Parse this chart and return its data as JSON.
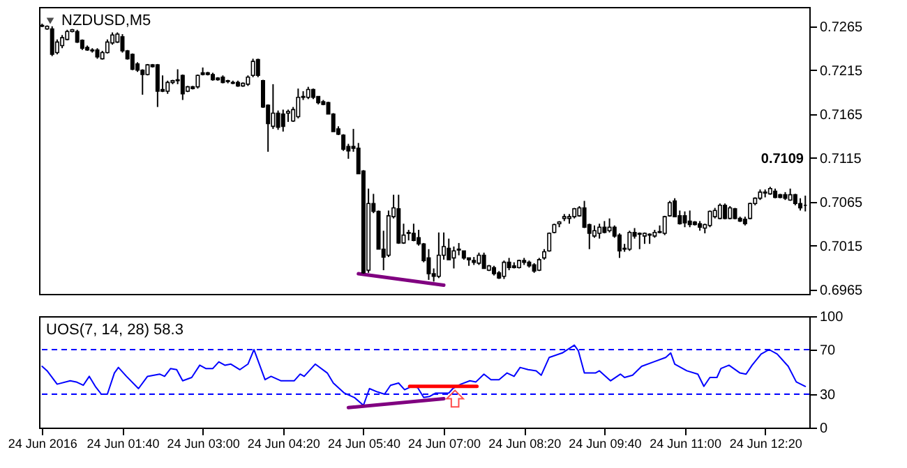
{
  "chart_data": [
    {
      "type": "candlestick",
      "title": "NZDUSD,M5",
      "color": "#000000",
      "x": [
        "2016-06-24T00:20",
        "2016-06-24T00:25",
        "2016-06-24T00:30",
        "2016-06-24T00:35",
        "2016-06-24T00:40",
        "2016-06-24T00:45",
        "2016-06-24T00:50",
        "2016-06-24T00:55",
        "2016-06-24T01:00",
        "2016-06-24T01:05",
        "2016-06-24T01:10",
        "2016-06-24T01:15",
        "2016-06-24T01:20",
        "2016-06-24T01:25",
        "2016-06-24T01:30",
        "2016-06-24T01:35",
        "2016-06-24T01:40",
        "2016-06-24T01:45",
        "2016-06-24T01:50",
        "2016-06-24T01:55",
        "2016-06-24T02:00",
        "2016-06-24T02:05",
        "2016-06-24T02:10",
        "2016-06-24T02:15",
        "2016-06-24T02:20",
        "2016-06-24T02:25",
        "2016-06-24T02:30",
        "2016-06-24T02:35",
        "2016-06-24T02:40",
        "2016-06-24T02:45",
        "2016-06-24T02:50",
        "2016-06-24T02:55",
        "2016-06-24T03:00",
        "2016-06-24T03:05",
        "2016-06-24T03:10",
        "2016-06-24T03:15",
        "2016-06-24T03:20",
        "2016-06-24T03:25",
        "2016-06-24T03:30",
        "2016-06-24T03:35",
        "2016-06-24T03:40",
        "2016-06-24T03:45",
        "2016-06-24T03:50",
        "2016-06-24T03:55",
        "2016-06-24T04:00",
        "2016-06-24T04:05",
        "2016-06-24T04:10",
        "2016-06-24T04:15",
        "2016-06-24T04:20",
        "2016-06-24T04:25",
        "2016-06-24T04:30",
        "2016-06-24T04:35",
        "2016-06-24T04:40",
        "2016-06-24T04:45",
        "2016-06-24T04:50",
        "2016-06-24T04:55",
        "2016-06-24T05:00",
        "2016-06-24T05:05",
        "2016-06-24T05:10",
        "2016-06-24T05:15",
        "2016-06-24T05:20",
        "2016-06-24T05:25",
        "2016-06-24T05:30",
        "2016-06-24T05:35",
        "2016-06-24T05:40",
        "2016-06-24T05:45",
        "2016-06-24T05:50",
        "2016-06-24T05:55",
        "2016-06-24T06:00",
        "2016-06-24T06:05",
        "2016-06-24T06:10",
        "2016-06-24T06:15",
        "2016-06-24T06:20",
        "2016-06-24T06:25",
        "2016-06-24T06:30",
        "2016-06-24T06:35",
        "2016-06-24T06:40",
        "2016-06-24T06:45",
        "2016-06-24T06:50",
        "2016-06-24T06:55",
        "2016-06-24T07:00",
        "2016-06-24T07:05",
        "2016-06-24T07:10",
        "2016-06-24T07:15",
        "2016-06-24T07:20",
        "2016-06-24T07:25",
        "2016-06-24T07:30",
        "2016-06-24T07:35",
        "2016-06-24T07:40",
        "2016-06-24T07:45",
        "2016-06-24T07:50",
        "2016-06-24T07:55",
        "2016-06-24T08:00",
        "2016-06-24T08:05",
        "2016-06-24T08:10",
        "2016-06-24T08:15",
        "2016-06-24T08:20",
        "2016-06-24T08:25",
        "2016-06-24T08:30",
        "2016-06-24T08:35",
        "2016-06-24T08:40",
        "2016-06-24T08:45",
        "2016-06-24T08:50",
        "2016-06-24T08:55",
        "2016-06-24T09:00",
        "2016-06-24T09:05",
        "2016-06-24T09:10",
        "2016-06-24T09:15",
        "2016-06-24T09:20",
        "2016-06-24T09:25",
        "2016-06-24T09:30",
        "2016-06-24T09:35",
        "2016-06-24T09:40",
        "2016-06-24T09:45",
        "2016-06-24T09:50",
        "2016-06-24T09:55",
        "2016-06-24T10:00",
        "2016-06-24T10:05",
        "2016-06-24T10:10",
        "2016-06-24T10:15",
        "2016-06-24T10:20",
        "2016-06-24T10:25",
        "2016-06-24T10:30",
        "2016-06-24T10:35",
        "2016-06-24T10:40",
        "2016-06-24T10:45",
        "2016-06-24T10:50",
        "2016-06-24T10:55",
        "2016-06-24T11:00",
        "2016-06-24T11:05",
        "2016-06-24T11:10",
        "2016-06-24T11:15",
        "2016-06-24T11:20",
        "2016-06-24T11:25",
        "2016-06-24T11:30",
        "2016-06-24T11:35",
        "2016-06-24T11:40",
        "2016-06-24T11:45",
        "2016-06-24T11:50",
        "2016-06-24T11:55",
        "2016-06-24T12:00",
        "2016-06-24T12:05",
        "2016-06-24T12:10",
        "2016-06-24T12:15",
        "2016-06-24T12:20",
        "2016-06-24T12:25",
        "2016-06-24T12:30",
        "2016-06-24T12:35",
        "2016-06-24T12:40",
        "2016-06-24T12:45",
        "2016-06-24T12:50",
        "2016-06-24T12:55",
        "2016-06-24T13:00"
      ],
      "ohlc": [
        [
          0.7266,
          0.7268,
          0.7264,
          0.7265
        ],
        [
          0.7262,
          0.7266,
          0.7261,
          0.7265
        ],
        [
          0.7262,
          0.7265,
          0.7231,
          0.7233
        ],
        [
          0.7235,
          0.725,
          0.7233,
          0.7247
        ],
        [
          0.7243,
          0.7255,
          0.724,
          0.7252
        ],
        [
          0.725,
          0.7261,
          0.7249,
          0.7259
        ],
        [
          0.7259,
          0.7262,
          0.7258,
          0.7261
        ],
        [
          0.7259,
          0.7261,
          0.7246,
          0.7247
        ],
        [
          0.7249,
          0.725,
          0.7238,
          0.724
        ],
        [
          0.7241,
          0.7243,
          0.7237,
          0.7238
        ],
        [
          0.7238,
          0.724,
          0.7235,
          0.7237
        ],
        [
          0.7238,
          0.724,
          0.7228,
          0.723
        ],
        [
          0.7228,
          0.7237,
          0.7227,
          0.7235
        ],
        [
          0.7235,
          0.725,
          0.7234,
          0.7247
        ],
        [
          0.7246,
          0.7258,
          0.7244,
          0.7255
        ],
        [
          0.7247,
          0.7258,
          0.7246,
          0.7256
        ],
        [
          0.7253,
          0.7256,
          0.7235,
          0.7237
        ],
        [
          0.7237,
          0.7238,
          0.7227,
          0.7228
        ],
        [
          0.7233,
          0.7234,
          0.7215,
          0.7216
        ],
        [
          0.7222,
          0.7224,
          0.7213,
          0.7215
        ],
        [
          0.7215,
          0.7216,
          0.7187,
          0.721
        ],
        [
          0.721,
          0.7222,
          0.7209,
          0.7221
        ],
        [
          0.7221,
          0.7222,
          0.7218,
          0.7219
        ],
        [
          0.7221,
          0.7222,
          0.7173,
          0.7191
        ],
        [
          0.7193,
          0.7209,
          0.719,
          0.7191
        ],
        [
          0.7191,
          0.7203,
          0.7188,
          0.7201
        ],
        [
          0.7201,
          0.7204,
          0.7199,
          0.7203
        ],
        [
          0.7203,
          0.7216,
          0.7199,
          0.7204
        ],
        [
          0.7209,
          0.721,
          0.7181,
          0.7188
        ],
        [
          0.7191,
          0.7197,
          0.719,
          0.7196
        ],
        [
          0.7196,
          0.7197,
          0.7193,
          0.7194
        ],
        [
          0.7196,
          0.721,
          0.7194,
          0.7209
        ],
        [
          0.7212,
          0.7218,
          0.7209,
          0.721
        ],
        [
          0.7212,
          0.7213,
          0.7209,
          0.721
        ],
        [
          0.721,
          0.7212,
          0.7203,
          0.7204
        ],
        [
          0.7206,
          0.7207,
          0.7203,
          0.7204
        ],
        [
          0.7207,
          0.7209,
          0.72,
          0.7201
        ],
        [
          0.7203,
          0.7204,
          0.72,
          0.7202
        ],
        [
          0.7201,
          0.7203,
          0.7199,
          0.72
        ],
        [
          0.7201,
          0.7203,
          0.7196,
          0.7197
        ],
        [
          0.7197,
          0.7201,
          0.7196,
          0.72
        ],
        [
          0.7199,
          0.7209,
          0.7197,
          0.7207
        ],
        [
          0.7209,
          0.7228,
          0.7207,
          0.7225
        ],
        [
          0.7227,
          0.7228,
          0.7207,
          0.7209
        ],
        [
          0.7203,
          0.7204,
          0.7172,
          0.7173
        ],
        [
          0.7175,
          0.7176,
          0.7122,
          0.7154
        ],
        [
          0.7151,
          0.7199,
          0.7148,
          0.7166
        ],
        [
          0.7166,
          0.7169,
          0.7147,
          0.715
        ],
        [
          0.7165,
          0.717,
          0.7145,
          0.7151
        ],
        [
          0.7166,
          0.717,
          0.7156,
          0.7168
        ],
        [
          0.7157,
          0.7173,
          0.7156,
          0.717
        ],
        [
          0.7162,
          0.7194,
          0.716,
          0.7184
        ],
        [
          0.7184,
          0.7191,
          0.7181,
          0.7185
        ],
        [
          0.7184,
          0.7196,
          0.7182,
          0.7193
        ],
        [
          0.7193,
          0.7194,
          0.7182,
          0.7184
        ],
        [
          0.7185,
          0.7185,
          0.7176,
          0.7178
        ],
        [
          0.7179,
          0.7181,
          0.7175,
          0.7176
        ],
        [
          0.7178,
          0.7179,
          0.7165,
          0.7165
        ],
        [
          0.7165,
          0.7166,
          0.7145,
          0.7145
        ],
        [
          0.7148,
          0.7151,
          0.7141,
          0.7142
        ],
        [
          0.7141,
          0.7142,
          0.7123,
          0.7125
        ],
        [
          0.7128,
          0.7131,
          0.7114,
          0.7123
        ],
        [
          0.7128,
          0.7148,
          0.7122,
          0.7126
        ],
        [
          0.7126,
          0.7132,
          0.7097,
          0.7097
        ],
        [
          0.71,
          0.7101,
          0.6983,
          0.6984
        ],
        [
          0.6987,
          0.708,
          0.6984,
          0.7063
        ],
        [
          0.7063,
          0.7074,
          0.7052,
          0.7054
        ],
        [
          0.7054,
          0.7055,
          0.7011,
          0.7011
        ],
        [
          0.7011,
          0.7032,
          0.6987,
          0.7002
        ],
        [
          0.7004,
          0.7055,
          0.7002,
          0.7049
        ],
        [
          0.7048,
          0.7073,
          0.7046,
          0.7058
        ],
        [
          0.7057,
          0.7073,
          0.7017,
          0.7018
        ],
        [
          0.7018,
          0.704,
          0.7017,
          0.7027
        ],
        [
          0.703,
          0.7033,
          0.7021,
          0.7029
        ],
        [
          0.7029,
          0.704,
          0.702,
          0.7021
        ],
        [
          0.7024,
          0.7033,
          0.7015,
          0.7017
        ],
        [
          0.7017,
          0.7018,
          0.6996,
          0.6998
        ],
        [
          0.7001,
          0.7011,
          0.6976,
          0.6983
        ],
        [
          0.6983,
          0.6989,
          0.6974,
          0.698
        ],
        [
          0.698,
          0.703,
          0.6978,
          0.7004
        ],
        [
          0.7004,
          0.703,
          0.6999,
          0.7014
        ],
        [
          0.7012,
          0.7023,
          0.6999,
          0.6999
        ],
        [
          0.7001,
          0.7014,
          0.6989,
          0.7009
        ],
        [
          0.7011,
          0.7018,
          0.7004,
          0.701
        ],
        [
          0.7009,
          0.7009,
          0.6999,
          0.7001
        ],
        [
          0.7001,
          0.7001,
          0.6992,
          0.6999
        ],
        [
          0.6998,
          0.7002,
          0.6993,
          0.6996
        ],
        [
          0.6995,
          0.7007,
          0.6993,
          0.7004
        ],
        [
          0.7004,
          0.7007,
          0.6989,
          0.6989
        ],
        [
          0.6987,
          0.6993,
          0.6986,
          0.6992
        ],
        [
          0.699,
          0.6992,
          0.6981,
          0.6983
        ],
        [
          0.6984,
          0.6986,
          0.6977,
          0.6978
        ],
        [
          0.698,
          0.6998,
          0.6977,
          0.6996
        ],
        [
          0.6996,
          0.7001,
          0.6987,
          0.699
        ],
        [
          0.6992,
          0.6996,
          0.6989,
          0.699
        ],
        [
          0.699,
          0.6999,
          0.6989,
          0.6998
        ],
        [
          0.6998,
          0.7001,
          0.6993,
          0.6996
        ],
        [
          0.6996,
          0.6998,
          0.699,
          0.6992
        ],
        [
          0.6993,
          0.6995,
          0.6984,
          0.6986
        ],
        [
          0.6987,
          0.7001,
          0.6986,
          0.6999
        ],
        [
          0.7001,
          0.7011,
          0.6999,
          0.7008
        ],
        [
          0.7009,
          0.703,
          0.7008,
          0.7029
        ],
        [
          0.703,
          0.704,
          0.7029,
          0.7039
        ],
        [
          0.704,
          0.7043,
          0.7036,
          0.7042
        ],
        [
          0.7046,
          0.7051,
          0.7043,
          0.7048
        ],
        [
          0.7046,
          0.7051,
          0.704,
          0.7048
        ],
        [
          0.7048,
          0.7058,
          0.7046,
          0.7057
        ],
        [
          0.7049,
          0.706,
          0.7048,
          0.7058
        ],
        [
          0.7058,
          0.7066,
          0.7035,
          0.7036
        ],
        [
          0.7039,
          0.704,
          0.7011,
          0.7029
        ],
        [
          0.7026,
          0.7038,
          0.7024,
          0.7032
        ],
        [
          0.7029,
          0.704,
          0.7023,
          0.7036
        ],
        [
          0.7036,
          0.7043,
          0.7029,
          0.703
        ],
        [
          0.7032,
          0.7046,
          0.703,
          0.7036
        ],
        [
          0.7036,
          0.7038,
          0.7024,
          0.7026
        ],
        [
          0.7027,
          0.7029,
          0.7001,
          0.7009
        ],
        [
          0.7011,
          0.7017,
          0.7008,
          0.7012
        ],
        [
          0.7011,
          0.7032,
          0.7009,
          0.703
        ],
        [
          0.703,
          0.7035,
          0.7023,
          0.7026
        ],
        [
          0.7029,
          0.703,
          0.7011,
          0.7028
        ],
        [
          0.7026,
          0.703,
          0.7017,
          0.7029
        ],
        [
          0.7027,
          0.7029,
          0.7017,
          0.7028
        ],
        [
          0.7026,
          0.7033,
          0.7024,
          0.703
        ],
        [
          0.703,
          0.7038,
          0.7029,
          0.7031
        ],
        [
          0.7029,
          0.7049,
          0.7027,
          0.7048
        ],
        [
          0.7049,
          0.7066,
          0.7048,
          0.7064
        ],
        [
          0.7066,
          0.7069,
          0.7048,
          0.7048
        ],
        [
          0.7049,
          0.7055,
          0.7039,
          0.704
        ],
        [
          0.7049,
          0.7054,
          0.7036,
          0.7041
        ],
        [
          0.7043,
          0.7055,
          0.7036,
          0.7039
        ],
        [
          0.7042,
          0.7043,
          0.7038,
          0.7039
        ],
        [
          0.704,
          0.7043,
          0.7032,
          0.7036
        ],
        [
          0.7035,
          0.704,
          0.7029,
          0.7039
        ],
        [
          0.7038,
          0.7055,
          0.7036,
          0.7054
        ],
        [
          0.7048,
          0.7058,
          0.7046,
          0.7055
        ],
        [
          0.7046,
          0.7063,
          0.7045,
          0.7061
        ],
        [
          0.7061,
          0.7063,
          0.7045,
          0.7046
        ],
        [
          0.7046,
          0.706,
          0.7045,
          0.7058
        ],
        [
          0.7057,
          0.7058,
          0.7045,
          0.7046
        ],
        [
          0.7046,
          0.7048,
          0.7042,
          0.7043
        ],
        [
          0.7045,
          0.7048,
          0.7038,
          0.704
        ],
        [
          0.7046,
          0.7064,
          0.7045,
          0.7063
        ],
        [
          0.7063,
          0.707,
          0.7061,
          0.7069
        ],
        [
          0.7069,
          0.7079,
          0.7067,
          0.7076
        ],
        [
          0.7076,
          0.7079,
          0.707,
          0.7075
        ],
        [
          0.7074,
          0.7082,
          0.7073,
          0.708
        ],
        [
          0.7077,
          0.708,
          0.7069,
          0.707
        ],
        [
          0.7073,
          0.7074,
          0.7069,
          0.707
        ],
        [
          0.7073,
          0.7076,
          0.7067,
          0.7069
        ],
        [
          0.7067,
          0.708,
          0.7066,
          0.7073
        ],
        [
          0.7073,
          0.7074,
          0.7061,
          0.7063
        ],
        [
          0.7063,
          0.7069,
          0.7055,
          0.7058
        ],
        [
          0.7061,
          0.7072,
          0.7054,
          0.7061
        ]
      ],
      "series": [
        {
          "type": "line",
          "x": [
            "2016-06-24T05:35",
            "2016-06-24T07:00"
          ],
          "values": [
            0.6983,
            0.697
          ],
          "color": "#800080"
        }
      ],
      "annotations": [
        "0.7109"
      ],
      "xlim": [
        "2016-06-24T00:17",
        "2016-06-24T13:04"
      ],
      "ylim": [
        0.696,
        0.7287
      ],
      "yticks": [
        0.6965,
        0.7015,
        0.7065,
        0.7115,
        0.7165,
        0.7215,
        0.7265
      ],
      "tick_labels": "y"
    },
    {
      "type": "line",
      "title": "UOS(7, 14, 28) 58.3",
      "series": [
        {
          "x": [
            "2016-06-24T00:20",
            "2016-06-24T00:25",
            "2016-06-24T00:35",
            "2016-06-24T00:48",
            "2016-06-24T00:54",
            "2016-06-24T01:01",
            "2016-06-24T01:07",
            "2016-06-24T01:13",
            "2016-06-24T01:19",
            "2016-06-24T01:25",
            "2016-06-24T01:32",
            "2016-06-24T01:36",
            "2016-06-24T01:44",
            "2016-06-24T01:56",
            "2016-06-24T02:05",
            "2016-06-24T02:17",
            "2016-06-24T02:22",
            "2016-06-24T02:28",
            "2016-06-24T02:34",
            "2016-06-24T02:40",
            "2016-06-24T02:49",
            "2016-06-24T02:57",
            "2016-06-24T03:03",
            "2016-06-24T03:10",
            "2016-06-24T03:16",
            "2016-06-24T03:22",
            "2016-06-24T03:28",
            "2016-06-24T03:37",
            "2016-06-24T03:45",
            "2016-06-24T03:51",
            "2016-06-24T04:02",
            "2016-06-24T04:08",
            "2016-06-24T04:18",
            "2016-06-24T04:31",
            "2016-06-24T04:37",
            "2016-06-24T04:41",
            "2016-06-24T04:52",
            "2016-06-24T05:04",
            "2016-06-24T05:10",
            "2016-06-24T05:21",
            "2016-06-24T05:31",
            "2016-06-24T05:40",
            "2016-06-24T05:46",
            "2016-06-24T05:54",
            "2016-06-24T06:01",
            "2016-06-24T06:07",
            "2016-06-24T06:15",
            "2016-06-24T06:21",
            "2016-06-24T06:28",
            "2016-06-24T06:34",
            "2016-06-24T06:40",
            "2016-06-24T06:46",
            "2016-06-24T06:52",
            "2016-06-24T07:05",
            "2016-06-24T07:09",
            "2016-06-24T07:17",
            "2016-06-24T07:26",
            "2016-06-24T07:32",
            "2016-06-24T07:40",
            "2016-06-24T07:47",
            "2016-06-24T07:55",
            "2016-06-24T08:03",
            "2016-06-24T08:10",
            "2016-06-24T08:16",
            "2016-06-24T08:24",
            "2016-06-24T08:32",
            "2016-06-24T08:37",
            "2016-06-24T08:45",
            "2016-06-24T08:58",
            "2016-06-24T09:10",
            "2016-06-24T09:14",
            "2016-06-24T09:20",
            "2016-06-24T09:31",
            "2016-06-24T09:35",
            "2016-06-24T09:46",
            "2016-06-24T09:56",
            "2016-06-24T10:00",
            "2016-06-24T10:08",
            "2016-06-24T10:17",
            "2016-06-24T10:29",
            "2016-06-24T10:41",
            "2016-06-24T10:46",
            "2016-06-24T10:50",
            "2016-06-24T11:02",
            "2016-06-24T11:13",
            "2016-06-24T11:19",
            "2016-06-24T11:25",
            "2016-06-24T11:32",
            "2016-06-24T11:36",
            "2016-06-24T11:44",
            "2016-06-24T11:55",
            "2016-06-24T12:01",
            "2016-06-24T12:07",
            "2016-06-24T12:16",
            "2016-06-24T12:24",
            "2016-06-24T12:32",
            "2016-06-24T12:43",
            "2016-06-24T12:51",
            "2016-06-24T13:00"
          ],
          "values": [
            55,
            51,
            39,
            42,
            41,
            38,
            46,
            37,
            30,
            30,
            49,
            54,
            46,
            35,
            46,
            48,
            46,
            53,
            52,
            42,
            45,
            56,
            53,
            53,
            59,
            56,
            57,
            52,
            57,
            70,
            43,
            46,
            42,
            42,
            48,
            46,
            57,
            49,
            40,
            31,
            27,
            20,
            35,
            32,
            30,
            38,
            40,
            34,
            37,
            36,
            27,
            28,
            31,
            31,
            35,
            39,
            42,
            41,
            48,
            43,
            43,
            49,
            46,
            54,
            52,
            51,
            47,
            63,
            67,
            74,
            69,
            49,
            49,
            51,
            42,
            48,
            45,
            47,
            55,
            59,
            63,
            67,
            57,
            51,
            48,
            37,
            45,
            45,
            53,
            56,
            49,
            48,
            56,
            66,
            70,
            66,
            55,
            41,
            37
          ],
          "color": "#0000ff"
        },
        {
          "x": [
            "2016-06-24T05:25",
            "2016-06-24T07:00"
          ],
          "values": [
            18,
            26
          ],
          "color": "#800080"
        },
        {
          "x": [
            "2016-06-24T06:26",
            "2016-06-24T07:33"
          ],
          "values": [
            37,
            37
          ],
          "color": "#ff0000"
        }
      ],
      "ref_lines": [
        {
          "axis": "y",
          "value": 70,
          "color": "#0000ff",
          "line_style": "dashed"
        },
        {
          "axis": "y",
          "value": 30,
          "color": "#0000ff",
          "line_style": "dashed"
        }
      ],
      "xlim": [
        "2016-06-24T00:17",
        "2016-06-24T13:04"
      ],
      "xticks": [
        {
          "value": "2016-06-24T00:20",
          "label": "24 Jun 2016"
        },
        {
          "value": "2016-06-24T01:40",
          "label": "24 Jun 01:40"
        },
        {
          "value": "2016-06-24T03:00",
          "label": "24 Jun 03:00"
        },
        {
          "value": "2016-06-24T04:20",
          "label": "24 Jun 04:20"
        },
        {
          "value": "2016-06-24T05:40",
          "label": "24 Jun 05:40"
        },
        {
          "value": "2016-06-24T07:00",
          "label": "24 Jun 07:00"
        },
        {
          "value": "2016-06-24T08:20",
          "label": "24 Jun 08:20"
        },
        {
          "value": "2016-06-24T09:40",
          "label": "24 Jun 09:40"
        },
        {
          "value": "2016-06-24T11:00",
          "label": "24 Jun 11:00"
        },
        {
          "value": "2016-06-24T12:20",
          "label": "24 Jun 12:20"
        }
      ],
      "ylim": [
        0,
        100
      ],
      "yticks": [
        0,
        30,
        70,
        100
      ]
    }
  ]
}
